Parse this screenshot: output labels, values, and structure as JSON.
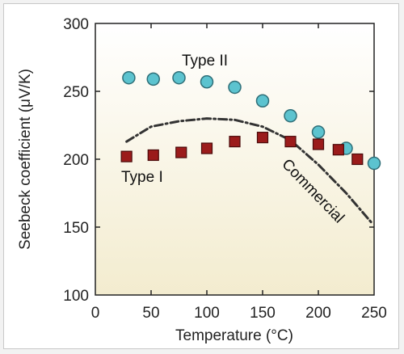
{
  "chart_data": {
    "type": "scatter",
    "title": "",
    "xlabel": "Temperature (°C)",
    "ylabel": "Seebeck coefficient (μV/K)",
    "xlim": [
      0,
      250
    ],
    "ylim": [
      100,
      300
    ],
    "xticks": [
      0,
      50,
      100,
      150,
      200,
      250
    ],
    "yticks": [
      100,
      150,
      200,
      250,
      300
    ],
    "grid": false,
    "background_gradient": [
      "#ffffff",
      "#f3eccf"
    ],
    "series": [
      {
        "name": "Type II",
        "marker": "circle",
        "color": "#5cc3cf",
        "x": [
          30,
          52,
          75,
          100,
          125,
          150,
          175,
          200,
          225,
          250
        ],
        "y": [
          260,
          259,
          260,
          257,
          253,
          243,
          232,
          220,
          208,
          197
        ]
      },
      {
        "name": "Type I",
        "marker": "square",
        "color": "#9b1b1b",
        "x": [
          28,
          52,
          77,
          100,
          125,
          150,
          175,
          200,
          218,
          235
        ],
        "y": [
          202,
          203,
          205,
          208,
          213,
          216,
          213,
          211,
          207,
          200
        ]
      },
      {
        "name": "Commercial",
        "marker": "none",
        "line": "dashdot",
        "color": "#333333",
        "x": [
          28,
          50,
          75,
          100,
          125,
          150,
          175,
          200,
          225,
          248
        ],
        "y": [
          213,
          224,
          228,
          230,
          229,
          224,
          214,
          196,
          175,
          153
        ]
      }
    ],
    "annotations": {
      "type2": "Type II",
      "type1": "Type I",
      "commercial": "Commercial"
    }
  }
}
